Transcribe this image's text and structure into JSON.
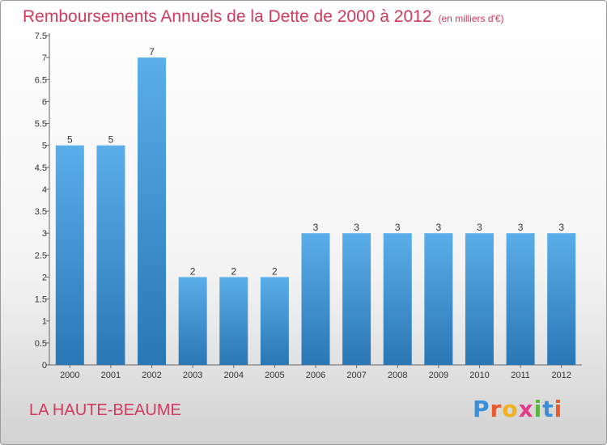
{
  "colors": {
    "title": "#d23a5e",
    "bar_top": "#5aaeea",
    "bar_bottom": "#2a77b5"
  },
  "chart_data": {
    "type": "bar",
    "title": "Remboursements Annuels de la Dette de 2000 à 2012",
    "subtitle": "(en milliers d'€)",
    "categories": [
      "2000",
      "2001",
      "2002",
      "2003",
      "2004",
      "2005",
      "2006",
      "2007",
      "2008",
      "2009",
      "2010",
      "2011",
      "2012"
    ],
    "values": [
      5,
      5,
      7,
      2,
      2,
      2,
      3,
      3,
      3,
      3,
      3,
      3,
      3
    ],
    "data_labels": [
      "5",
      "5",
      "7",
      "2",
      "2",
      "2",
      "3",
      "3",
      "3",
      "3",
      "3",
      "3",
      "3"
    ],
    "y_ticks": [
      "0",
      "0.5",
      "1",
      "1.5",
      "2",
      "2.5",
      "3",
      "3.5",
      "4",
      "4.5",
      "5",
      "5.5",
      "6",
      "6.5",
      "7",
      "7.5"
    ],
    "ylim": [
      0,
      7.5
    ],
    "grid": false
  },
  "footer": {
    "place": "LA HAUTE-BEAUME"
  },
  "logo": {
    "letters": [
      "P",
      "r",
      "o",
      "x",
      "i",
      "t",
      "i"
    ],
    "colors": [
      "#3a8fd8",
      "#e85a2a",
      "#f0b020",
      "#e63b8a",
      "#5ab543",
      "#3a8fd8",
      "#e85a2a"
    ]
  }
}
